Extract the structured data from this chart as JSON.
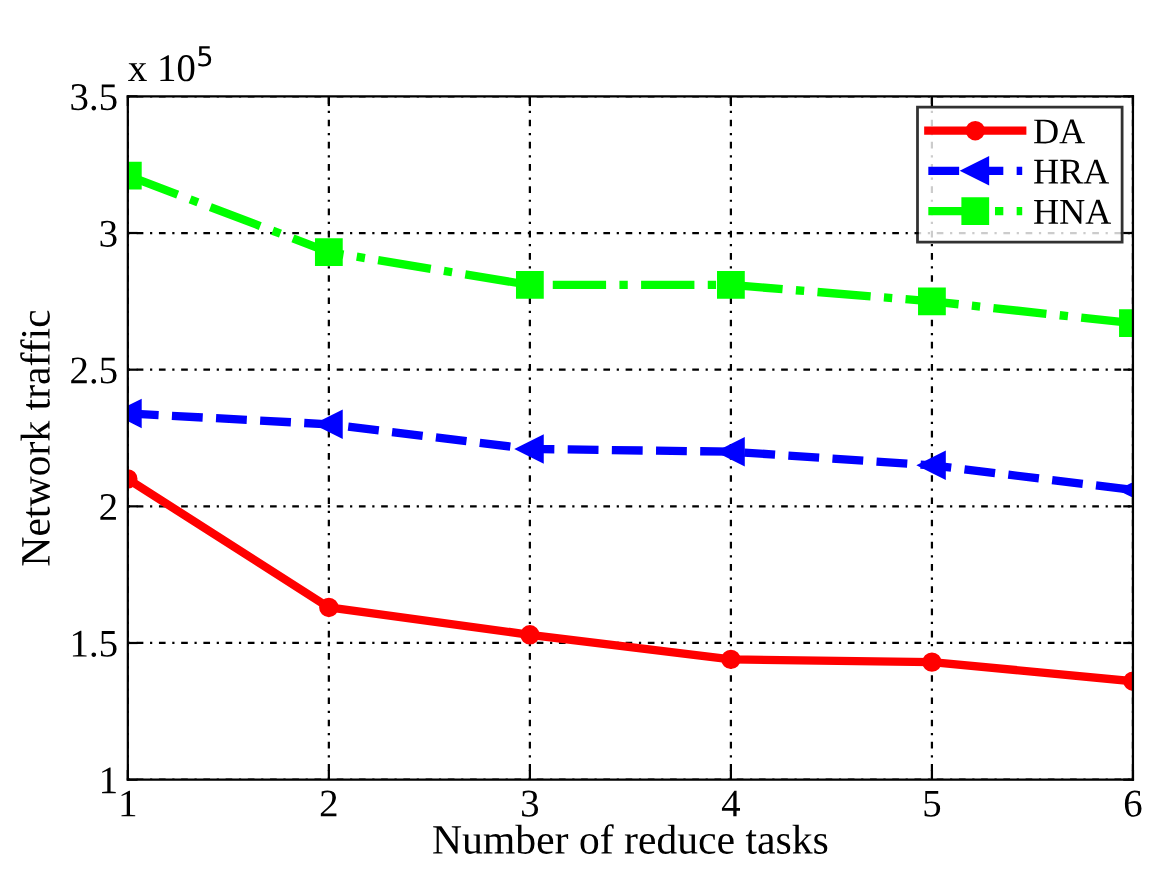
{
  "chart_data": {
    "type": "line",
    "xlabel": "Number of reduce tasks",
    "ylabel": "Network traffic",
    "annotations": [
      "x 10$^{5}$"
    ],
    "x": [
      1,
      2,
      3,
      4,
      5,
      6
    ],
    "series": [
      {
        "name": "DA",
        "color": "#ff0000",
        "marker": "circle",
        "line_style": "solid",
        "values": [
          2.1,
          1.63,
          1.53,
          1.44,
          1.43,
          1.36
        ]
      },
      {
        "name": "HRA",
        "color": "#0000ff",
        "marker": "triangle",
        "line_style": "dashed",
        "values": [
          2.34,
          2.3,
          2.21,
          2.2,
          2.15,
          2.06
        ]
      },
      {
        "name": "HNA",
        "color": "#00ff00",
        "marker": "square",
        "line_style": "dashdot",
        "values": [
          3.21,
          2.93,
          2.81,
          2.81,
          2.75,
          2.67
        ]
      }
    ],
    "xlim": [
      1,
      6
    ],
    "xticks": [
      1,
      2,
      3,
      4,
      5,
      6
    ],
    "ylim": [
      1,
      3.5
    ],
    "yticks": [
      1,
      1.5,
      2,
      2.5,
      3,
      3.5
    ],
    "grid": true,
    "legend": "top right"
  }
}
